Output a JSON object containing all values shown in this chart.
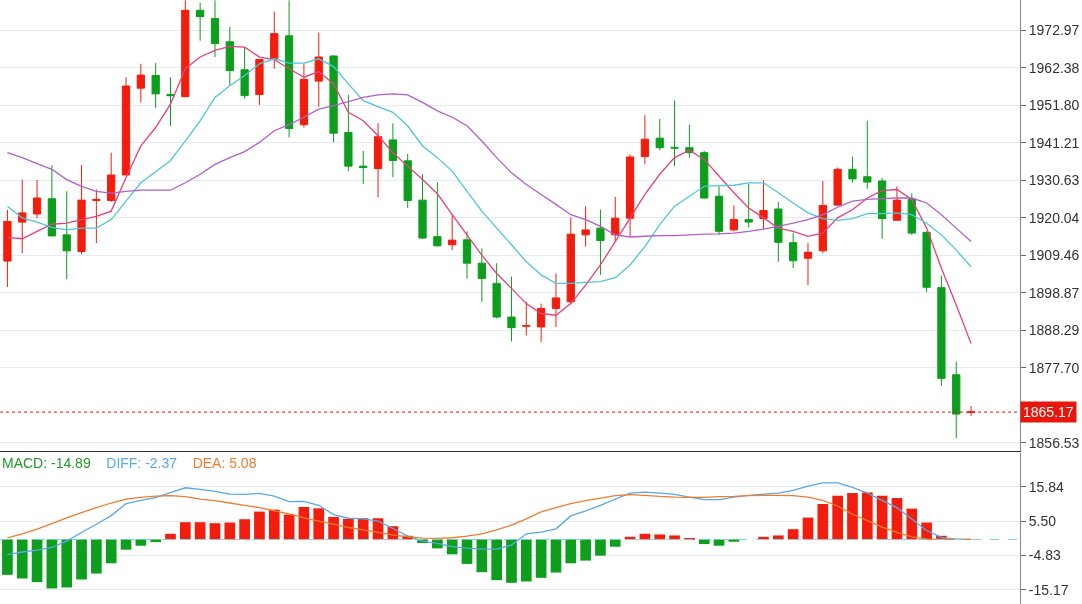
{
  "chart_data": [
    {
      "type": "candlestick",
      "categories": [
        null,
        null,
        null,
        null,
        null,
        null,
        null,
        null,
        null,
        null,
        null,
        null,
        null,
        null,
        null,
        null,
        null,
        null,
        null,
        null,
        null,
        null,
        null,
        null,
        null,
        null,
        null,
        null,
        null,
        null,
        null,
        null,
        null,
        null,
        null,
        null,
        null,
        null,
        null,
        null,
        null,
        null,
        null,
        null,
        null,
        null,
        null,
        null,
        null,
        null,
        null,
        null,
        null,
        null,
        null,
        null,
        null,
        null,
        null,
        null,
        null,
        null,
        null,
        null,
        null,
        null
      ],
      "ohlc": [
        [
          1907.8,
          1922.3,
          1900.5,
          1919.0
        ],
        [
          1918.8,
          1930.8,
          1910.0,
          1921.4
        ],
        [
          1921.1,
          1930.7,
          1919.9,
          1925.6
        ],
        [
          1925.4,
          1934.9,
          1914.8,
          1914.9
        ],
        [
          1915.2,
          1927.5,
          1902.7,
          1910.7
        ],
        [
          1910.5,
          1934.9,
          1909.7,
          1925.0
        ],
        [
          1924.9,
          1928.0,
          1912.9,
          1925.2
        ],
        [
          1924.9,
          1938.4,
          1924.5,
          1932.1
        ],
        [
          1932.1,
          1959.7,
          1932.1,
          1957.2
        ],
        [
          1956.6,
          1963.5,
          1952.6,
          1960.3
        ],
        [
          1960.2,
          1963.7,
          1951.0,
          1955.0
        ],
        [
          1954.8,
          1959.7,
          1946.0,
          1954.5
        ],
        [
          1954.2,
          1981.4,
          1954.2,
          1978.6
        ],
        [
          1978.6,
          1980.7,
          1970.0,
          1976.8
        ],
        [
          1976.3,
          1981.4,
          1965.4,
          1969.2
        ],
        [
          1969.7,
          1973.9,
          1957.4,
          1961.6
        ],
        [
          1961.8,
          1968.2,
          1953.6,
          1954.5
        ],
        [
          1954.8,
          1964.7,
          1951.9,
          1964.7
        ],
        [
          1964.9,
          1978.2,
          1962.1,
          1972.0
        ],
        [
          1971.4,
          1981.4,
          1942.7,
          1945.2
        ],
        [
          1946.3,
          1963.5,
          1945.5,
          1959.1
        ],
        [
          1958.6,
          1972.3,
          1951.4,
          1965.4
        ],
        [
          1965.7,
          1965.9,
          1941.3,
          1943.9
        ],
        [
          1944.1,
          1954.7,
          1933.2,
          1934.6
        ],
        [
          1934.6,
          1938.9,
          1929.6,
          1934.2
        ],
        [
          1933.9,
          1946.7,
          1925.8,
          1942.9
        ],
        [
          1942.0,
          1946.7,
          1931.5,
          1936.2
        ],
        [
          1936.1,
          1938.1,
          1922.8,
          1924.9
        ],
        [
          1925.0,
          1932.3,
          1914.1,
          1914.3
        ],
        [
          1914.7,
          1930.1,
          1911.9,
          1912.1
        ],
        [
          1912.4,
          1920.9,
          1910.9,
          1913.7
        ],
        [
          1913.8,
          1916.2,
          1902.9,
          1907.2
        ],
        [
          1907.2,
          1911.4,
          1896.3,
          1902.9
        ],
        [
          1901.5,
          1907.2,
          1891.6,
          1892.0
        ],
        [
          1892.0,
          1903.4,
          1885.1,
          1889.0
        ],
        [
          1889.4,
          1896.3,
          1886.8,
          1889.6
        ],
        [
          1889.2,
          1895.8,
          1884.9,
          1894.4
        ],
        [
          1894.4,
          1904.3,
          1889.2,
          1897.4
        ],
        [
          1896.3,
          1920.1,
          1895.8,
          1915.4
        ],
        [
          1915.2,
          1923.3,
          1911.9,
          1916.6
        ],
        [
          1917.1,
          1922.3,
          1903.9,
          1913.6
        ],
        [
          1915.2,
          1925.9,
          1913.3,
          1919.9
        ],
        [
          1919.9,
          1937.9,
          1914.8,
          1937.2
        ],
        [
          1937.3,
          1949.0,
          1935.1,
          1942.2
        ],
        [
          1942.5,
          1947.9,
          1939.1,
          1939.8
        ],
        [
          1939.9,
          1953.1,
          1934.6,
          1939.7
        ],
        [
          1939.8,
          1946.3,
          1937.0,
          1938.4
        ],
        [
          1938.4,
          1938.9,
          1925.5,
          1925.6
        ],
        [
          1926.1,
          1928.9,
          1915.2,
          1916.2
        ],
        [
          1916.6,
          1923.5,
          1916.2,
          1919.5
        ],
        [
          1919.5,
          1929.6,
          1917.3,
          1918.8
        ],
        [
          1919.8,
          1930.6,
          1916.8,
          1922.1
        ],
        [
          1922.5,
          1924.5,
          1907.6,
          1913.1
        ],
        [
          1913.0,
          1915.7,
          1905.8,
          1907.9
        ],
        [
          1908.6,
          1912.9,
          1901.0,
          1910.3
        ],
        [
          1910.7,
          1930.4,
          1910.0,
          1923.5
        ],
        [
          1923.6,
          1934.2,
          1923.3,
          1933.7
        ],
        [
          1933.7,
          1937.3,
          1929.9,
          1931.0
        ],
        [
          1931.6,
          1947.4,
          1928.2,
          1930.1
        ],
        [
          1930.4,
          1931.3,
          1914.1,
          1919.8
        ],
        [
          1919.3,
          1928.9,
          1919.3,
          1925.0
        ],
        [
          1925.2,
          1926.9,
          1915.2,
          1915.7
        ],
        [
          1915.9,
          1916.2,
          1899.1,
          1900.4
        ],
        [
          1900.3,
          1903.7,
          1872.6,
          1874.7
        ],
        [
          1875.7,
          1879.4,
          1857.8,
          1864.6
        ],
        [
          1865.1,
          1866.9,
          1864.1,
          1865.2
        ]
      ],
      "colors": [
        "#f21d0c",
        "#f21d0c",
        "#f21d0c",
        "#0c9e1c",
        "#0c9e1c",
        "#f21d0c",
        "#f21d0c",
        "#f21d0c",
        "#f21d0c",
        "#f21d0c",
        "#0c9e1c",
        "#0c9e1c",
        "#f21d0c",
        "#0c9e1c",
        "#0c9e1c",
        "#0c9e1c",
        "#0c9e1c",
        "#f21d0c",
        "#f21d0c",
        "#0c9e1c",
        "#f21d0c",
        "#f21d0c",
        "#0c9e1c",
        "#0c9e1c",
        "#0c9e1c",
        "#f21d0c",
        "#0c9e1c",
        "#0c9e1c",
        "#0c9e1c",
        "#0c9e1c",
        "#f21d0c",
        "#0c9e1c",
        "#0c9e1c",
        "#0c9e1c",
        "#0c9e1c",
        "#f21d0c",
        "#f21d0c",
        "#f21d0c",
        "#f21d0c",
        "#f21d0c",
        "#0c9e1c",
        "#f21d0c",
        "#f21d0c",
        "#f21d0c",
        "#0c9e1c",
        "#0c9e1c",
        "#0c9e1c",
        "#0c9e1c",
        "#0c9e1c",
        "#f21d0c",
        "#0c9e1c",
        "#f21d0c",
        "#0c9e1c",
        "#0c9e1c",
        "#f21d0c",
        "#f21d0c",
        "#f21d0c",
        "#0c9e1c",
        "#0c9e1c",
        "#0c9e1c",
        "#f21d0c",
        "#0c9e1c",
        "#0c9e1c",
        "#0c9e1c",
        "#0c9e1c",
        "#f21d0c"
      ],
      "series": [
        {
          "type": "line",
          "color": "#e8407a",
          "values": [
            1914.5,
            1914.1,
            1916.2,
            1918.2,
            1918.5,
            1919.5,
            1920.4,
            1921.9,
            1931.3,
            1940.3,
            1945.5,
            1952.1,
            1962.1,
            1965.4,
            1967.3,
            1968.4,
            1968.2,
            1965.4,
            1964.7,
            1962.1,
            1959.7,
            1961.3,
            1957.8,
            1949.8,
            1947.4,
            1943.2,
            1938.4,
            1934.6,
            1930.8,
            1926.8,
            1920.9,
            1915.2,
            1909.5,
            1904.3,
            1900.1,
            1895.8,
            1893.0,
            1892.5,
            1895.8,
            1901.0,
            1906.7,
            1913.3,
            1919.9,
            1926.6,
            1932.3,
            1937.0,
            1939.1,
            1936.5,
            1931.8,
            1927.1,
            1922.8,
            1920.0,
            1917.1,
            1916.2,
            1914.8,
            1915.7,
            1920.0,
            1922.3,
            1925.6,
            1927.7,
            1928.0,
            1925.2,
            1917.1,
            1905.8,
            1895.4,
            1884.5
          ]
        },
        {
          "type": "line",
          "color": "#4fc6d6",
          "values": [
            1923.3,
            1920.0,
            1918.8,
            1917.3,
            1916.6,
            1917.1,
            1917.1,
            1919.5,
            1924.7,
            1929.9,
            1933.0,
            1936.2,
            1941.7,
            1947.4,
            1954.0,
            1957.3,
            1960.2,
            1963.5,
            1964.9,
            1963.7,
            1963.7,
            1964.9,
            1962.7,
            1957.8,
            1953.1,
            1951.4,
            1949.8,
            1946.0,
            1940.3,
            1937.0,
            1933.2,
            1927.5,
            1921.9,
            1917.1,
            1912.4,
            1907.6,
            1903.9,
            1901.5,
            1901.5,
            1901.8,
            1902.0,
            1903.1,
            1906.7,
            1911.9,
            1918.1,
            1923.3,
            1926.1,
            1928.9,
            1929.1,
            1929.2,
            1929.9,
            1929.9,
            1927.1,
            1924.2,
            1921.4,
            1919.8,
            1919.3,
            1919.8,
            1921.2,
            1921.2,
            1921.4,
            1920.9,
            1918.5,
            1915.2,
            1910.9,
            1906.2
          ]
        },
        {
          "type": "line",
          "color": "#b160c9",
          "values": [
            1938.4,
            1937.0,
            1935.3,
            1933.7,
            1930.8,
            1928.9,
            1927.5,
            1927.0,
            1927.5,
            1927.8,
            1927.8,
            1927.8,
            1929.9,
            1932.3,
            1935.1,
            1937.0,
            1938.7,
            1941.3,
            1944.6,
            1946.3,
            1948.4,
            1950.7,
            1951.7,
            1952.8,
            1954.0,
            1954.7,
            1955.0,
            1954.7,
            1952.6,
            1950.2,
            1948.4,
            1946.0,
            1941.7,
            1937.0,
            1932.7,
            1929.4,
            1926.6,
            1923.8,
            1920.9,
            1919.5,
            1917.6,
            1915.2,
            1914.6,
            1914.8,
            1915.0,
            1915.0,
            1915.2,
            1915.4,
            1915.5,
            1915.7,
            1916.2,
            1916.8,
            1917.6,
            1918.5,
            1919.5,
            1920.9,
            1923.0,
            1924.7,
            1925.2,
            1925.4,
            1925.6,
            1925.6,
            1924.2,
            1920.9,
            1917.1,
            1913.3
          ]
        }
      ],
      "ylim": [
        1854.3,
        1981.5
      ],
      "yticks": [
        {
          "value": 1972.97,
          "label": "1972.97"
        },
        {
          "value": 1962.38,
          "label": "1962.38"
        },
        {
          "value": 1951.8,
          "label": "1951.80"
        },
        {
          "value": 1941.21,
          "label": "1941.21"
        },
        {
          "value": 1930.63,
          "label": "1930.63"
        },
        {
          "value": 1920.04,
          "label": "1920.04"
        },
        {
          "value": 1909.46,
          "label": "1909.46"
        },
        {
          "value": 1898.87,
          "label": "1898.87"
        },
        {
          "value": 1888.29,
          "label": "1888.29"
        },
        {
          "value": 1877.7,
          "label": "1877.70"
        },
        {
          "value": 1856.53,
          "label": "1856.53"
        }
      ],
      "ref_lines": [
        {
          "axis": "y",
          "value": 1865.17,
          "label": "1865.17",
          "color": "#e8160c",
          "line_style": "dotted"
        }
      ],
      "grid": "y",
      "tick_labels": "y"
    },
    {
      "type": "bar",
      "categories": [
        null,
        null,
        null,
        null,
        null,
        null,
        null,
        null,
        null,
        null,
        null,
        null,
        null,
        null,
        null,
        null,
        null,
        null,
        null,
        null,
        null,
        null,
        null,
        null,
        null,
        null,
        null,
        null,
        null,
        null,
        null,
        null,
        null,
        null,
        null,
        null,
        null,
        null,
        null,
        null,
        null,
        null,
        null,
        null,
        null,
        null,
        null,
        null,
        null,
        null,
        null,
        null,
        null,
        null,
        null,
        null,
        null,
        null,
        null,
        null,
        null,
        null,
        null,
        null,
        null,
        null
      ],
      "series": [
        {
          "name": "MACD: -14.89",
          "color": "#1e9a28",
          "values": [
            -10.7,
            -11.8,
            -12.9,
            -14.8,
            -14.5,
            -12.1,
            -10.3,
            -7.2,
            -3.1,
            -1.9,
            -0.8,
            1.7,
            5.2,
            5.2,
            4.9,
            5.1,
            6.1,
            8.4,
            9.0,
            7.5,
            9.8,
            9.4,
            6.8,
            6.2,
            6.4,
            6.4,
            4.0,
            1.1,
            -1.1,
            -2.7,
            -4.5,
            -7.4,
            -9.9,
            -12.3,
            -13.1,
            -12.7,
            -11.6,
            -10.0,
            -7.2,
            -6.4,
            -4.9,
            -2.2,
            0.8,
            1.7,
            1.5,
            1.2,
            0.2,
            -1.4,
            -1.9,
            -0.7,
            null,
            0.8,
            1.2,
            3.1,
            6.6,
            10.7,
            13.2,
            14.0,
            14.2,
            13.2,
            12.5,
            9.3,
            5.1,
            1.1,
            null,
            null
          ],
          "colors": [
            "#0c9e1c",
            "#0c9e1c",
            "#0c9e1c",
            "#0c9e1c",
            "#0c9e1c",
            "#0c9e1c",
            "#0c9e1c",
            "#0c9e1c",
            "#0c9e1c",
            "#0c9e1c",
            "#0c9e1c",
            "#f21d0c",
            "#f21d0c",
            "#f21d0c",
            "#f21d0c",
            "#f21d0c",
            "#f21d0c",
            "#f21d0c",
            "#f21d0c",
            "#f21d0c",
            "#f21d0c",
            "#f21d0c",
            "#f21d0c",
            "#f21d0c",
            "#f21d0c",
            "#f21d0c",
            "#f21d0c",
            "#f21d0c",
            "#0c9e1c",
            "#0c9e1c",
            "#0c9e1c",
            "#0c9e1c",
            "#0c9e1c",
            "#0c9e1c",
            "#0c9e1c",
            "#0c9e1c",
            "#0c9e1c",
            "#0c9e1c",
            "#0c9e1c",
            "#0c9e1c",
            "#0c9e1c",
            "#0c9e1c",
            "#f21d0c",
            "#f21d0c",
            "#f21d0c",
            "#f21d0c",
            "#f21d0c",
            "#0c9e1c",
            "#0c9e1c",
            "#0c9e1c",
            null,
            "#f21d0c",
            "#f21d0c",
            "#f21d0c",
            "#f21d0c",
            "#f21d0c",
            "#f21d0c",
            "#f21d0c",
            "#f21d0c",
            "#f21d0c",
            "#f21d0c",
            "#f21d0c",
            "#f21d0c",
            "#f21d0c",
            null,
            null
          ]
        },
        {
          "name": "DIFF: -2.37",
          "type": "line",
          "color": "#58a8e6",
          "values": [
            -4.6,
            -3.8,
            -3.2,
            -2.4,
            -0.5,
            2.1,
            4.6,
            7.2,
            10.8,
            11.8,
            12.6,
            14.1,
            15.6,
            15.1,
            14.5,
            13.7,
            13.6,
            13.9,
            13.1,
            11.4,
            11.5,
            10.3,
            7.5,
            6.4,
            6.2,
            5.5,
            3.3,
            1.0,
            -0.5,
            -1.2,
            -2.2,
            -2.6,
            -2.9,
            -2.9,
            -1.7,
            1.7,
            2.2,
            3.2,
            7.1,
            8.6,
            10.3,
            12.2,
            14.0,
            14.3,
            14.0,
            13.6,
            12.8,
            12.0,
            12.0,
            12.8,
            13.3,
            13.7,
            14.0,
            14.8,
            16.1,
            17.1,
            17.1,
            15.7,
            14.0,
            11.8,
            9.6,
            6.2,
            2.7,
            0.6,
            0.1,
            0
          ]
        },
        {
          "name": "DEA: 5.08",
          "type": "line",
          "color": "#f07c2e",
          "values": [
            0.5,
            1.7,
            3.1,
            4.8,
            6.5,
            8.1,
            9.6,
            11.0,
            12.2,
            12.7,
            13.1,
            13.2,
            12.9,
            12.2,
            11.7,
            11.0,
            10.3,
            9.6,
            8.6,
            7.7,
            6.5,
            5.5,
            4.6,
            3.6,
            2.9,
            2.1,
            1.4,
            0.8,
            0.4,
            0.3,
            0.5,
            1.0,
            1.7,
            2.9,
            4.3,
            6.2,
            8.3,
            9.6,
            10.8,
            11.7,
            12.5,
            13.2,
            13.5,
            13.3,
            13.0,
            12.8,
            12.7,
            12.7,
            12.9,
            13.0,
            13.2,
            13.3,
            13.3,
            13.2,
            12.8,
            11.8,
            10.1,
            7.6,
            5.7,
            3.7,
            2.1,
            0.8,
            0.1,
            0,
            0,
            0
          ]
        }
      ],
      "ylim": [
        -19.5,
        26.1
      ],
      "yticks": [
        15.84,
        {
          "value": 5.5,
          "label": "5.50"
        },
        -4.83,
        -15.17
      ],
      "ref_lines": [
        {
          "axis": "y",
          "value": 0,
          "color": "#7fd0dc",
          "line_style": "dashed"
        }
      ],
      "grid": "y",
      "tick_labels": "y"
    }
  ]
}
